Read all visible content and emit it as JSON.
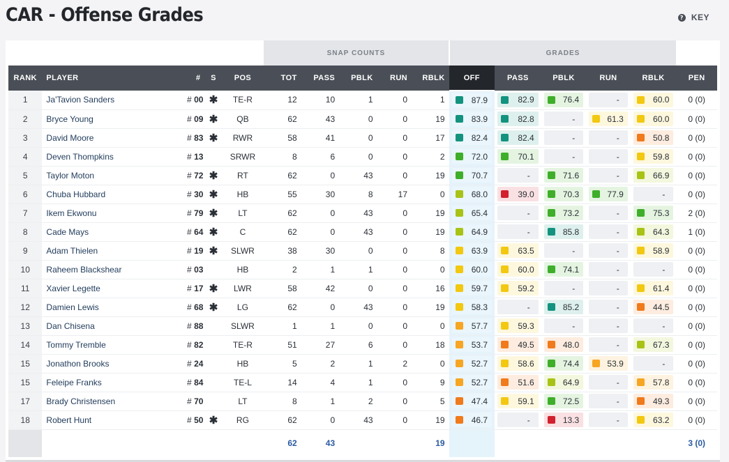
{
  "page": {
    "title": "CAR - Offense Grades"
  },
  "key": {
    "label": "KEY",
    "icon": "question-circle-icon",
    "icon_glyph": "?"
  },
  "groups": {
    "snap_counts": "SNAP COUNTS",
    "grades": "GRADES"
  },
  "columns": {
    "rank": "RANK",
    "player": "PLAYER",
    "num": "#",
    "s": "S",
    "pos": "POS",
    "tot": "TOT",
    "pass": "PASS",
    "pblk": "PBLK",
    "run": "RUN",
    "rblk": "RBLK",
    "off": "OFF",
    "g_pass": "PASS",
    "g_pblk": "PBLK",
    "g_run": "RUN",
    "g_rblk": "RBLK",
    "pen": "PEN"
  },
  "starter_glyph": "✱",
  "hash": "#",
  "dash": "-",
  "players": [
    {
      "rank": "1",
      "name": "Ja'Tavion Sanders",
      "num": "00",
      "starter": true,
      "pos": "TE-R",
      "tot": "12",
      "pass": "10",
      "pblk": "1",
      "run": "0",
      "rblk": "1",
      "off": "87.9",
      "g_pass": "82.9",
      "g_pblk": "76.4",
      "g_run": "-",
      "g_rblk": "60.0",
      "pen": "0 (0)"
    },
    {
      "rank": "2",
      "name": "Bryce Young",
      "num": "09",
      "starter": true,
      "pos": "QB",
      "tot": "62",
      "pass": "43",
      "pblk": "0",
      "run": "0",
      "rblk": "19",
      "off": "83.9",
      "g_pass": "82.8",
      "g_pblk": "-",
      "g_run": "61.3",
      "g_rblk": "60.0",
      "pen": "0 (0)"
    },
    {
      "rank": "3",
      "name": "David Moore",
      "num": "83",
      "starter": true,
      "pos": "RWR",
      "tot": "58",
      "pass": "41",
      "pblk": "0",
      "run": "0",
      "rblk": "17",
      "off": "82.4",
      "g_pass": "82.4",
      "g_pblk": "-",
      "g_run": "-",
      "g_rblk": "50.8",
      "pen": "0 (0)"
    },
    {
      "rank": "4",
      "name": "Deven Thompkins",
      "num": "13",
      "starter": false,
      "pos": "SRWR",
      "tot": "8",
      "pass": "6",
      "pblk": "0",
      "run": "0",
      "rblk": "2",
      "off": "72.0",
      "g_pass": "70.1",
      "g_pblk": "-",
      "g_run": "-",
      "g_rblk": "59.8",
      "pen": "0 (0)"
    },
    {
      "rank": "5",
      "name": "Taylor Moton",
      "num": "72",
      "starter": true,
      "pos": "RT",
      "tot": "62",
      "pass": "0",
      "pblk": "43",
      "run": "0",
      "rblk": "19",
      "off": "70.7",
      "g_pass": "-",
      "g_pblk": "71.6",
      "g_run": "-",
      "g_rblk": "66.9",
      "pen": "0 (0)"
    },
    {
      "rank": "6",
      "name": "Chuba Hubbard",
      "num": "30",
      "starter": true,
      "pos": "HB",
      "tot": "55",
      "pass": "30",
      "pblk": "8",
      "run": "17",
      "rblk": "0",
      "off": "68.0",
      "g_pass": "39.0",
      "g_pblk": "70.3",
      "g_run": "77.9",
      "g_rblk": "-",
      "pen": "0 (0)"
    },
    {
      "rank": "7",
      "name": "Ikem Ekwonu",
      "num": "79",
      "starter": true,
      "pos": "LT",
      "tot": "62",
      "pass": "0",
      "pblk": "43",
      "run": "0",
      "rblk": "19",
      "off": "65.4",
      "g_pass": "-",
      "g_pblk": "73.2",
      "g_run": "-",
      "g_rblk": "75.3",
      "pen": "2 (0)"
    },
    {
      "rank": "8",
      "name": "Cade Mays",
      "num": "64",
      "starter": true,
      "pos": "C",
      "tot": "62",
      "pass": "0",
      "pblk": "43",
      "run": "0",
      "rblk": "19",
      "off": "64.9",
      "g_pass": "-",
      "g_pblk": "85.8",
      "g_run": "-",
      "g_rblk": "64.3",
      "pen": "1 (0)"
    },
    {
      "rank": "9",
      "name": "Adam Thielen",
      "num": "19",
      "starter": true,
      "pos": "SLWR",
      "tot": "38",
      "pass": "30",
      "pblk": "0",
      "run": "0",
      "rblk": "8",
      "off": "63.9",
      "g_pass": "63.5",
      "g_pblk": "-",
      "g_run": "-",
      "g_rblk": "58.9",
      "pen": "0 (0)"
    },
    {
      "rank": "10",
      "name": "Raheem Blackshear",
      "num": "03",
      "starter": false,
      "pos": "HB",
      "tot": "2",
      "pass": "1",
      "pblk": "1",
      "run": "0",
      "rblk": "0",
      "off": "60.0",
      "g_pass": "60.0",
      "g_pblk": "74.1",
      "g_run": "-",
      "g_rblk": "-",
      "pen": "0 (0)"
    },
    {
      "rank": "11",
      "name": "Xavier Legette",
      "num": "17",
      "starter": true,
      "pos": "LWR",
      "tot": "58",
      "pass": "42",
      "pblk": "0",
      "run": "0",
      "rblk": "16",
      "off": "59.7",
      "g_pass": "59.2",
      "g_pblk": "-",
      "g_run": "-",
      "g_rblk": "61.4",
      "pen": "0 (0)"
    },
    {
      "rank": "12",
      "name": "Damien Lewis",
      "num": "68",
      "starter": true,
      "pos": "LG",
      "tot": "62",
      "pass": "0",
      "pblk": "43",
      "run": "0",
      "rblk": "19",
      "off": "58.3",
      "g_pass": "-",
      "g_pblk": "85.2",
      "g_run": "-",
      "g_rblk": "44.5",
      "pen": "0 (0)"
    },
    {
      "rank": "13",
      "name": "Dan Chisena",
      "num": "88",
      "starter": false,
      "pos": "SLWR",
      "tot": "1",
      "pass": "1",
      "pblk": "0",
      "run": "0",
      "rblk": "0",
      "off": "57.7",
      "g_pass": "59.3",
      "g_pblk": "-",
      "g_run": "-",
      "g_rblk": "-",
      "pen": "0 (0)"
    },
    {
      "rank": "14",
      "name": "Tommy Tremble",
      "num": "82",
      "starter": false,
      "pos": "TE-R",
      "tot": "51",
      "pass": "27",
      "pblk": "6",
      "run": "0",
      "rblk": "18",
      "off": "53.7",
      "g_pass": "49.5",
      "g_pblk": "48.0",
      "g_run": "-",
      "g_rblk": "67.3",
      "pen": "0 (0)"
    },
    {
      "rank": "15",
      "name": "Jonathon Brooks",
      "num": "24",
      "starter": false,
      "pos": "HB",
      "tot": "5",
      "pass": "2",
      "pblk": "1",
      "run": "2",
      "rblk": "0",
      "off": "52.7",
      "g_pass": "58.6",
      "g_pblk": "74.4",
      "g_run": "53.9",
      "g_rblk": "-",
      "pen": "0 (0)"
    },
    {
      "rank": "15",
      "name": "Feleipe Franks",
      "num": "84",
      "starter": false,
      "pos": "TE-L",
      "tot": "14",
      "pass": "4",
      "pblk": "1",
      "run": "0",
      "rblk": "9",
      "off": "52.7",
      "g_pass": "51.6",
      "g_pblk": "64.9",
      "g_run": "-",
      "g_rblk": "57.8",
      "pen": "0 (0)"
    },
    {
      "rank": "17",
      "name": "Brady Christensen",
      "num": "70",
      "starter": false,
      "pos": "LT",
      "tot": "8",
      "pass": "1",
      "pblk": "2",
      "run": "0",
      "rblk": "5",
      "off": "47.4",
      "g_pass": "59.1",
      "g_pblk": "72.5",
      "g_run": "-",
      "g_rblk": "49.3",
      "pen": "0 (0)"
    },
    {
      "rank": "18",
      "name": "Robert Hunt",
      "num": "50",
      "starter": true,
      "pos": "RG",
      "tot": "62",
      "pass": "0",
      "pblk": "43",
      "run": "0",
      "rblk": "19",
      "off": "46.7",
      "g_pass": "-",
      "g_pblk": "13.3",
      "g_run": "-",
      "g_rblk": "63.2",
      "pen": "0 (0)"
    }
  ],
  "totals": {
    "tot": "62",
    "pass": "43",
    "run": "19",
    "pen": "3 (0)"
  },
  "grade_colors": {
    "elite": "#13937f",
    "high": "#3fae2a",
    "good": "#a8c316",
    "avg": "#f2c811",
    "below": "#f6a623",
    "poor": "#f07a1c",
    "bad": "#d2202e"
  }
}
